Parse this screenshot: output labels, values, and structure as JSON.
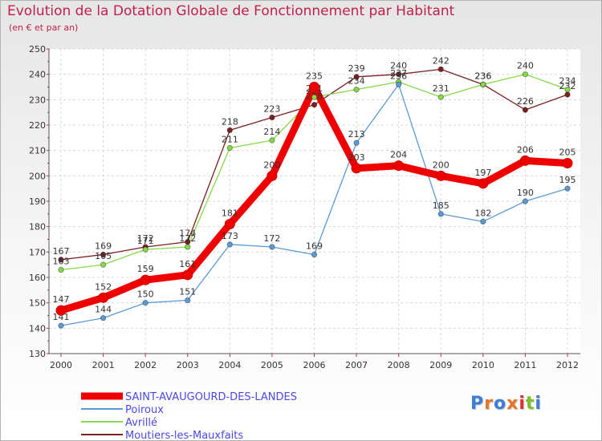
{
  "title": "Evolution de la Dotation Globale de Fonctionnement par Habitant",
  "subtitle": "(en € et par an)",
  "logo": "Proxiti",
  "chart_data": {
    "type": "line",
    "title": "Evolution de la Dotation Globale de Fonctionnement par Habitant",
    "ylabel": "(en € et par an)",
    "x": [
      "2000",
      "2001",
      "2002",
      "2003",
      "2004",
      "2005",
      "2006",
      "2007",
      "2008",
      "2009",
      "2010",
      "2011",
      "2012"
    ],
    "ylim": [
      130,
      250
    ],
    "yticks": [
      130,
      140,
      150,
      160,
      170,
      180,
      190,
      200,
      210,
      220,
      230,
      240,
      250
    ],
    "series": [
      {
        "name": "SAINT-AVAUGOURD-DES-LANDES",
        "color": "#ee0000",
        "values": [
          147,
          152,
          159,
          161,
          181,
          200,
          235,
          203,
          204,
          200,
          197,
          206,
          205
        ]
      },
      {
        "name": "Poiroux",
        "color": "#5b9bd5",
        "values": [
          141,
          144,
          150,
          151,
          173,
          172,
          169,
          213,
          236,
          185,
          182,
          190,
          195
        ]
      },
      {
        "name": "Avrillé",
        "color": "#86d94a",
        "values": [
          163,
          165,
          171,
          172,
          211,
          214,
          231,
          234,
          237,
          231,
          236,
          240,
          234
        ]
      },
      {
        "name": "Moutiers-les-Mauxfaits",
        "color": "#7a2020",
        "values": [
          167,
          169,
          172,
          174,
          218,
          223,
          228,
          239,
          240,
          242,
          236,
          226,
          232
        ]
      }
    ]
  }
}
